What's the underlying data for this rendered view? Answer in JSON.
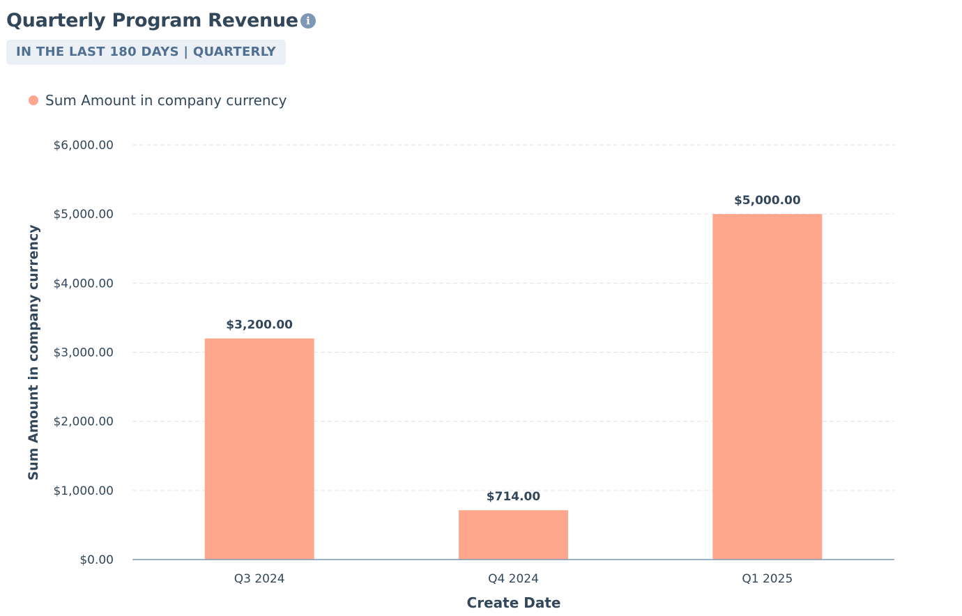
{
  "header": {
    "title": "Quarterly Program Revenue",
    "info_icon": "info-circle-icon",
    "badge": "IN THE LAST 180 DAYS | QUARTERLY"
  },
  "chart_data": {
    "type": "bar",
    "categories": [
      "Q3 2024",
      "Q4 2024",
      "Q1 2025"
    ],
    "series": [
      {
        "name": "Sum Amount in company currency",
        "values": [
          3200,
          714,
          5000
        ],
        "color": "#ffa78c"
      }
    ],
    "data_labels": [
      "$3,200.00",
      "$714.00",
      "$5,000.00"
    ],
    "xlabel": "Create Date",
    "ylabel": "Sum Amount in company currency",
    "ylim": [
      0,
      6000
    ],
    "yticks": [
      0,
      1000,
      2000,
      3000,
      4000,
      5000,
      6000
    ],
    "ytick_labels": [
      "$0.00",
      "$1,000.00",
      "$2,000.00",
      "$3,000.00",
      "$4,000.00",
      "$5,000.00",
      "$6,000.00"
    ],
    "grid": true,
    "legend_position": "top-left"
  }
}
